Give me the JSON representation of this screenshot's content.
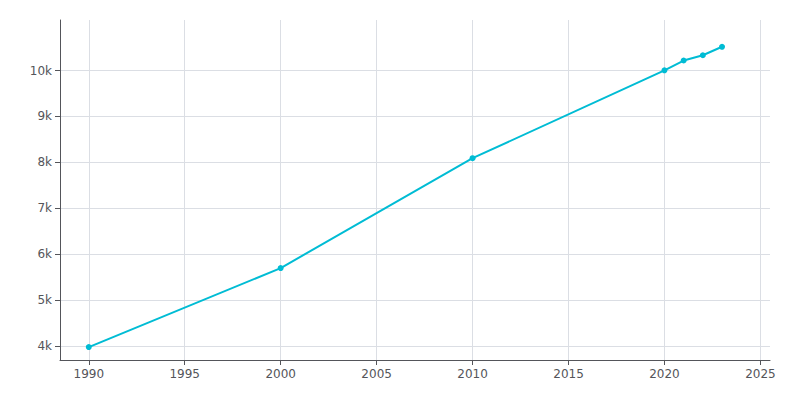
{
  "chart_data": {
    "type": "line",
    "x": [
      1990,
      2000,
      2010,
      2020,
      2021,
      2022,
      2023
    ],
    "values": [
      3981,
      5701,
      8092,
      10005,
      10218,
      10333,
      10517
    ],
    "color": "#00bcd4",
    "marker": "circle",
    "xlim": [
      1988.5,
      2025.5
    ],
    "ylim": [
      3700,
      11100
    ],
    "xticks": [
      1990,
      1995,
      2000,
      2005,
      2010,
      2015,
      2020,
      2025
    ],
    "yticks": [
      {
        "value": 4000,
        "label": "4k"
      },
      {
        "value": 5000,
        "label": "5k"
      },
      {
        "value": 6000,
        "label": "6k"
      },
      {
        "value": 7000,
        "label": "7k"
      },
      {
        "value": 8000,
        "label": "8k"
      },
      {
        "value": 9000,
        "label": "9k"
      },
      {
        "value": 10000,
        "label": "10k"
      }
    ],
    "grid": true
  }
}
